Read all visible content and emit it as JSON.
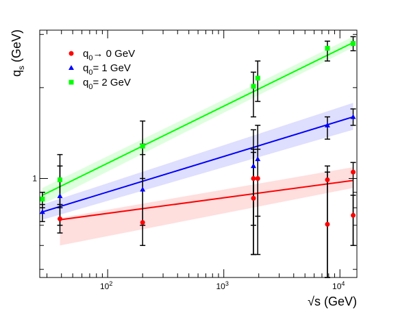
{
  "chart_data": {
    "type": "scatter",
    "title": "",
    "xlabel": "√s (GeV)",
    "ylabel": "q_s (GeV)",
    "xscale": "log",
    "yscale": "log",
    "xlim": [
      26,
      14000
    ],
    "ylim": [
      0.47,
      3.1
    ],
    "x_ticks": [
      {
        "value": 100,
        "base": "10",
        "exp": "2"
      },
      {
        "value": 1000,
        "base": "10",
        "exp": "3"
      },
      {
        "value": 10000,
        "base": "10",
        "exp": "4"
      }
    ],
    "y_ticks": [
      {
        "value": 1,
        "label": "1"
      }
    ],
    "grid": false,
    "legend_placement": "top-left",
    "colors": {
      "red": "#ff0000",
      "blue": "#0000ff",
      "green": "#00ff00"
    },
    "series": [
      {
        "name": "q0→ 0 GeV",
        "legend_label": {
          "base": "q",
          "sub": "0",
          "rest": "→ 0 GeV"
        },
        "color": "#ff0000",
        "marker": "circle",
        "points": [
          {
            "x": 38.8,
            "y": 0.735,
            "lo": 0.66,
            "hi": 0.82
          },
          {
            "x": 200,
            "y": 0.715,
            "lo": 0.6,
            "hi": 1.2
          },
          {
            "x": 1800,
            "y": 0.86,
            "lo": 0.56,
            "hi": 1.22
          },
          {
            "x": 1800,
            "y": 1.0,
            "lo": 0.56,
            "hi": 1.25
          },
          {
            "x": 1960,
            "y": 1.0,
            "lo": 0.56,
            "hi": 1.25
          },
          {
            "x": 7800,
            "y": 0.705,
            "lo": 0.47,
            "hi": 1.05
          },
          {
            "x": 7800,
            "y": 0.99,
            "lo": 0.47,
            "hi": 1.1
          },
          {
            "x": 13000,
            "y": 1.05,
            "lo": 0.6,
            "hi": 1.13
          },
          {
            "x": 13000,
            "y": 0.755,
            "lo": 0.6,
            "hi": 0.88
          }
        ],
        "fit": {
          "x1": 38.8,
          "y1": 0.73,
          "x2": 13000,
          "y2": 0.985
        },
        "band": {
          "x1": 38.8,
          "lo1": 0.6,
          "hi1": 0.74,
          "x2": 13000,
          "lo2": 0.93,
          "hi2": 1.09
        }
      },
      {
        "name": "q0= 1 GeV",
        "legend_label": {
          "base": "q",
          "sub": "0",
          "rest": "= 1 GeV"
        },
        "color": "#0000ff",
        "marker": "triangle",
        "points": [
          {
            "x": 27.4,
            "y": 0.775,
            "lo": 0.72,
            "hi": 0.82
          },
          {
            "x": 38.8,
            "y": 0.875,
            "lo": 0.7,
            "hi": 1.1
          },
          {
            "x": 200,
            "y": 0.92,
            "lo": 0.7,
            "hi": 1.3
          },
          {
            "x": 1800,
            "y": 1.1,
            "lo": 0.7,
            "hi": 1.45
          },
          {
            "x": 1960,
            "y": 1.16,
            "lo": 0.75,
            "hi": 1.5
          },
          {
            "x": 7800,
            "y": 1.5,
            "lo": 1.35,
            "hi": 1.6
          },
          {
            "x": 13000,
            "y": 1.6,
            "lo": 1.5,
            "hi": 1.7
          }
        ],
        "fit": {
          "x1": 27.4,
          "y1": 0.775,
          "x2": 13000,
          "y2": 1.6
        },
        "band": {
          "x1": 27.4,
          "lo1": 0.73,
          "hi1": 0.82,
          "x2": 13000,
          "lo2": 1.45,
          "hi2": 1.78
        }
      },
      {
        "name": "q0= 2 GeV",
        "legend_label": {
          "base": "q",
          "sub": "0",
          "rest": "= 2 GeV"
        },
        "color": "#00ff00",
        "marker": "square",
        "points": [
          {
            "x": 27.4,
            "y": 0.855,
            "lo": 0.8,
            "hi": 0.9
          },
          {
            "x": 38.8,
            "y": 0.99,
            "lo": 0.8,
            "hi": 1.2
          },
          {
            "x": 200,
            "y": 1.28,
            "lo": 1.0,
            "hi": 1.55
          },
          {
            "x": 1800,
            "y": 2.02,
            "lo": 1.6,
            "hi": 2.25
          },
          {
            "x": 1960,
            "y": 2.15,
            "lo": 1.8,
            "hi": 2.45
          },
          {
            "x": 7800,
            "y": 2.7,
            "lo": 2.45,
            "hi": 2.85
          },
          {
            "x": 13000,
            "y": 2.8,
            "lo": 2.65,
            "hi": 2.95
          }
        ],
        "fit": {
          "x1": 27.4,
          "y1": 0.88,
          "x2": 13000,
          "y2": 2.82
        },
        "band": {
          "x1": 27.4,
          "lo1": 0.82,
          "hi1": 0.93,
          "x2": 13000,
          "lo2": 2.72,
          "hi2": 2.95
        }
      }
    ]
  }
}
